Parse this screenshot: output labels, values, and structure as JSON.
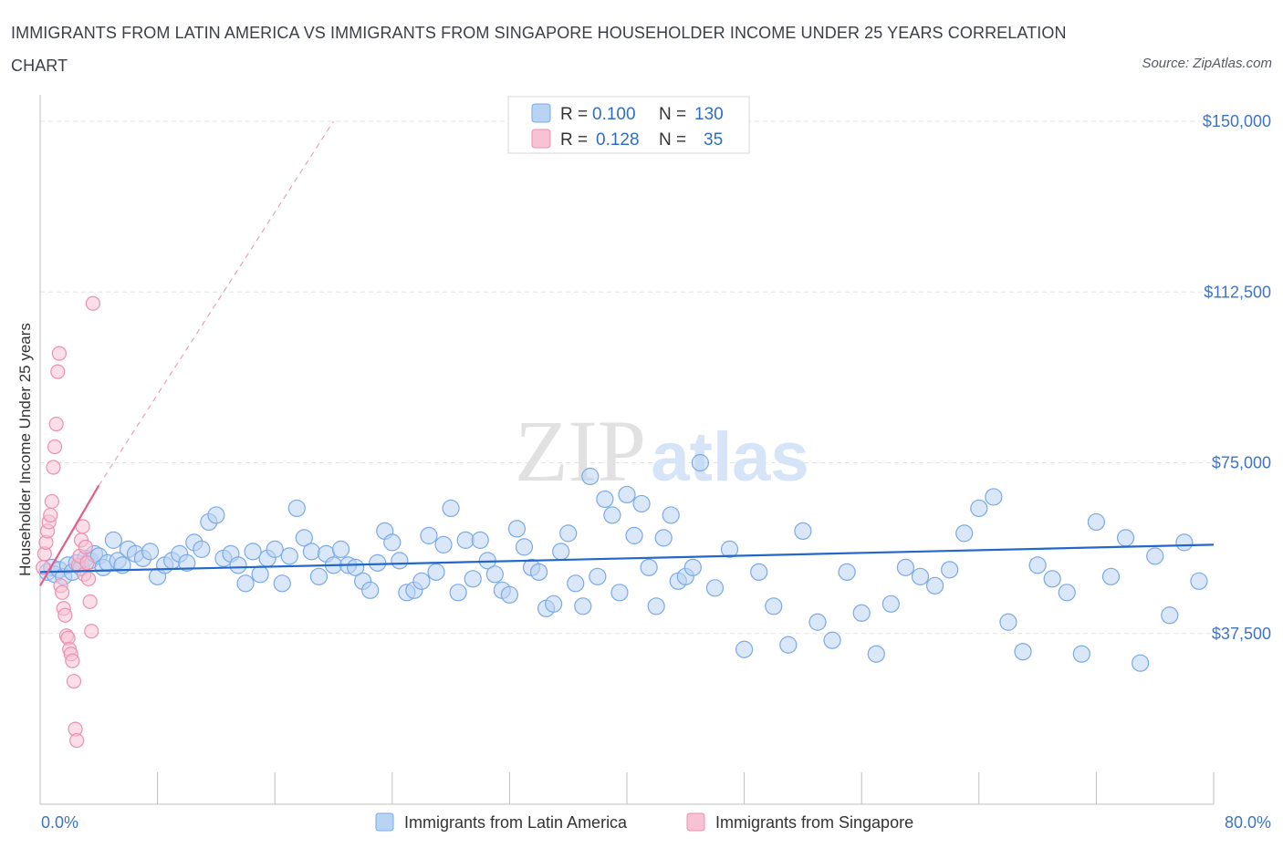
{
  "title": "IMMIGRANTS FROM LATIN AMERICA VS IMMIGRANTS FROM SINGAPORE HOUSEHOLDER INCOME UNDER 25 YEARS CORRELATION CHART",
  "source": "Source: ZipAtlas.com",
  "watermark": {
    "zip": "ZIP",
    "atlas": "atlas"
  },
  "chart_data": {
    "type": "scatter",
    "title": "IMMIGRANTS FROM LATIN AMERICA VS IMMIGRANTS FROM SINGAPORE HOUSEHOLDER INCOME UNDER 25 YEARS CORRELATION CHART",
    "xlabel": "",
    "ylabel": "Householder Income Under 25 years",
    "xlim": [
      0,
      80
    ],
    "ylim": [
      0,
      160000
    ],
    "x_tick_labels": [
      "0.0%",
      "80.0%"
    ],
    "y_ticks": [
      {
        "value": 37500,
        "label": "$37,500"
      },
      {
        "value": 75000,
        "label": "$75,000"
      },
      {
        "value": 112500,
        "label": "$112,500"
      },
      {
        "value": 150000,
        "label": "$150,000"
      }
    ],
    "grid": true,
    "legend_position": "top-center",
    "legend": [
      {
        "r_label": "R =",
        "r_value": "0.100",
        "n_label": "N =",
        "n_value": "130"
      },
      {
        "r_label": "R =",
        "r_value": "0.128",
        "n_label": "N =",
        "n_value": "35"
      }
    ],
    "series": [
      {
        "name": "Immigrants from Latin America",
        "color": "#7aaae8",
        "fill": "#b9d3f3",
        "trend": {
          "x0": 0,
          "y0": 51000,
          "x1": 80,
          "y1": 57000,
          "color": "#2368c9"
        },
        "points": [
          [
            0.5,
            51000
          ],
          [
            0.8,
            52000
          ],
          [
            1.0,
            50500
          ],
          [
            1.3,
            51500
          ],
          [
            1.6,
            50000
          ],
          [
            1.9,
            52500
          ],
          [
            2.2,
            51000
          ],
          [
            2.5,
            53000
          ],
          [
            2.8,
            52000
          ],
          [
            3.1,
            54000
          ],
          [
            3.4,
            53500
          ],
          [
            3.7,
            55000
          ],
          [
            4.0,
            54500
          ],
          [
            4.3,
            52000
          ],
          [
            4.6,
            53000
          ],
          [
            5.0,
            58000
          ],
          [
            5.3,
            53500
          ],
          [
            5.6,
            52500
          ],
          [
            6.0,
            56000
          ],
          [
            6.5,
            55000
          ],
          [
            7.0,
            54000
          ],
          [
            7.5,
            55500
          ],
          [
            8.0,
            50000
          ],
          [
            8.5,
            52500
          ],
          [
            9.0,
            53500
          ],
          [
            9.5,
            55000
          ],
          [
            10.0,
            53000
          ],
          [
            10.5,
            57500
          ],
          [
            11.0,
            56000
          ],
          [
            11.5,
            62000
          ],
          [
            12.0,
            63500
          ],
          [
            12.5,
            54000
          ],
          [
            13.0,
            55000
          ],
          [
            13.5,
            52500
          ],
          [
            14.0,
            48500
          ],
          [
            14.5,
            55500
          ],
          [
            15.0,
            50500
          ],
          [
            15.5,
            54000
          ],
          [
            16.0,
            56000
          ],
          [
            16.5,
            48500
          ],
          [
            17.0,
            54500
          ],
          [
            17.5,
            65000
          ],
          [
            18.0,
            58500
          ],
          [
            18.5,
            55500
          ],
          [
            19.0,
            50000
          ],
          [
            19.5,
            55000
          ],
          [
            20.0,
            52500
          ],
          [
            20.5,
            56000
          ],
          [
            21.0,
            52500
          ],
          [
            21.5,
            52000
          ],
          [
            22.0,
            49000
          ],
          [
            22.5,
            47000
          ],
          [
            23.0,
            53000
          ],
          [
            23.5,
            60000
          ],
          [
            24.0,
            57500
          ],
          [
            24.5,
            53500
          ],
          [
            25.0,
            46500
          ],
          [
            25.5,
            47000
          ],
          [
            26.0,
            49000
          ],
          [
            26.5,
            59000
          ],
          [
            27.0,
            51000
          ],
          [
            27.5,
            57000
          ],
          [
            28.0,
            65000
          ],
          [
            28.5,
            46500
          ],
          [
            29.0,
            58000
          ],
          [
            29.5,
            49500
          ],
          [
            30.0,
            58000
          ],
          [
            30.5,
            53500
          ],
          [
            31.0,
            50500
          ],
          [
            31.5,
            47000
          ],
          [
            32.0,
            46000
          ],
          [
            32.5,
            60500
          ],
          [
            33.0,
            56500
          ],
          [
            33.5,
            52000
          ],
          [
            34.0,
            51000
          ],
          [
            34.5,
            43000
          ],
          [
            35.0,
            44000
          ],
          [
            35.5,
            55500
          ],
          [
            36.0,
            59500
          ],
          [
            36.5,
            48500
          ],
          [
            37.0,
            43500
          ],
          [
            37.5,
            72000
          ],
          [
            38.0,
            50000
          ],
          [
            38.5,
            67000
          ],
          [
            39.0,
            63500
          ],
          [
            39.5,
            46500
          ],
          [
            40.0,
            68000
          ],
          [
            40.5,
            59000
          ],
          [
            41.0,
            66000
          ],
          [
            41.5,
            52000
          ],
          [
            42.0,
            43500
          ],
          [
            42.5,
            58500
          ],
          [
            43.0,
            63500
          ],
          [
            43.5,
            49000
          ],
          [
            44.0,
            50000
          ],
          [
            44.5,
            52000
          ],
          [
            45.0,
            75000
          ],
          [
            46.0,
            47500
          ],
          [
            47.0,
            56000
          ],
          [
            48.0,
            34000
          ],
          [
            49.0,
            51000
          ],
          [
            50.0,
            43500
          ],
          [
            51.0,
            35000
          ],
          [
            52.0,
            60000
          ],
          [
            53.0,
            40000
          ],
          [
            54.0,
            36000
          ],
          [
            55.0,
            51000
          ],
          [
            56.0,
            42000
          ],
          [
            57.0,
            33000
          ],
          [
            58.0,
            44000
          ],
          [
            59.0,
            52000
          ],
          [
            60.0,
            50000
          ],
          [
            61.0,
            48000
          ],
          [
            62.0,
            51500
          ],
          [
            63.0,
            59500
          ],
          [
            64.0,
            65000
          ],
          [
            65.0,
            67500
          ],
          [
            66.0,
            40000
          ],
          [
            67.0,
            33500
          ],
          [
            68.0,
            52500
          ],
          [
            69.0,
            49500
          ],
          [
            70.0,
            46500
          ],
          [
            71.0,
            33000
          ],
          [
            72.0,
            62000
          ],
          [
            73.0,
            50000
          ],
          [
            74.0,
            58500
          ],
          [
            75.0,
            31000
          ],
          [
            76.0,
            54500
          ],
          [
            77.0,
            41500
          ],
          [
            78.0,
            57500
          ],
          [
            79.0,
            49000
          ]
        ]
      },
      {
        "name": "Immigrants from Singapore",
        "color": "#ec8fb0",
        "fill": "#f7c3d4",
        "trend": {
          "x0": 0,
          "y0": 48000,
          "x1": 4,
          "y1": 70000,
          "color": "#e35d8c"
        },
        "dashed_extension": {
          "x0": 4,
          "y0": 70000,
          "x1": 20,
          "y1": 150000
        },
        "points": [
          [
            0.2,
            52000
          ],
          [
            0.3,
            55000
          ],
          [
            0.4,
            57500
          ],
          [
            0.5,
            60000
          ],
          [
            0.6,
            62000
          ],
          [
            0.7,
            63500
          ],
          [
            0.8,
            66500
          ],
          [
            0.9,
            74000
          ],
          [
            1.0,
            78500
          ],
          [
            1.1,
            83500
          ],
          [
            1.2,
            95000
          ],
          [
            1.3,
            99000
          ],
          [
            1.4,
            48000
          ],
          [
            1.5,
            46500
          ],
          [
            1.6,
            43000
          ],
          [
            1.7,
            41500
          ],
          [
            1.8,
            37000
          ],
          [
            1.9,
            36500
          ],
          [
            2.0,
            34000
          ],
          [
            2.1,
            33000
          ],
          [
            2.2,
            31500
          ],
          [
            2.3,
            27000
          ],
          [
            2.4,
            16500
          ],
          [
            2.5,
            14000
          ],
          [
            2.6,
            52500
          ],
          [
            2.7,
            54500
          ],
          [
            2.8,
            58000
          ],
          [
            2.9,
            61000
          ],
          [
            3.0,
            50500
          ],
          [
            3.1,
            56500
          ],
          [
            3.2,
            53000
          ],
          [
            3.3,
            49500
          ],
          [
            3.4,
            44500
          ],
          [
            3.5,
            38000
          ],
          [
            3.6,
            110000
          ]
        ]
      }
    ]
  }
}
